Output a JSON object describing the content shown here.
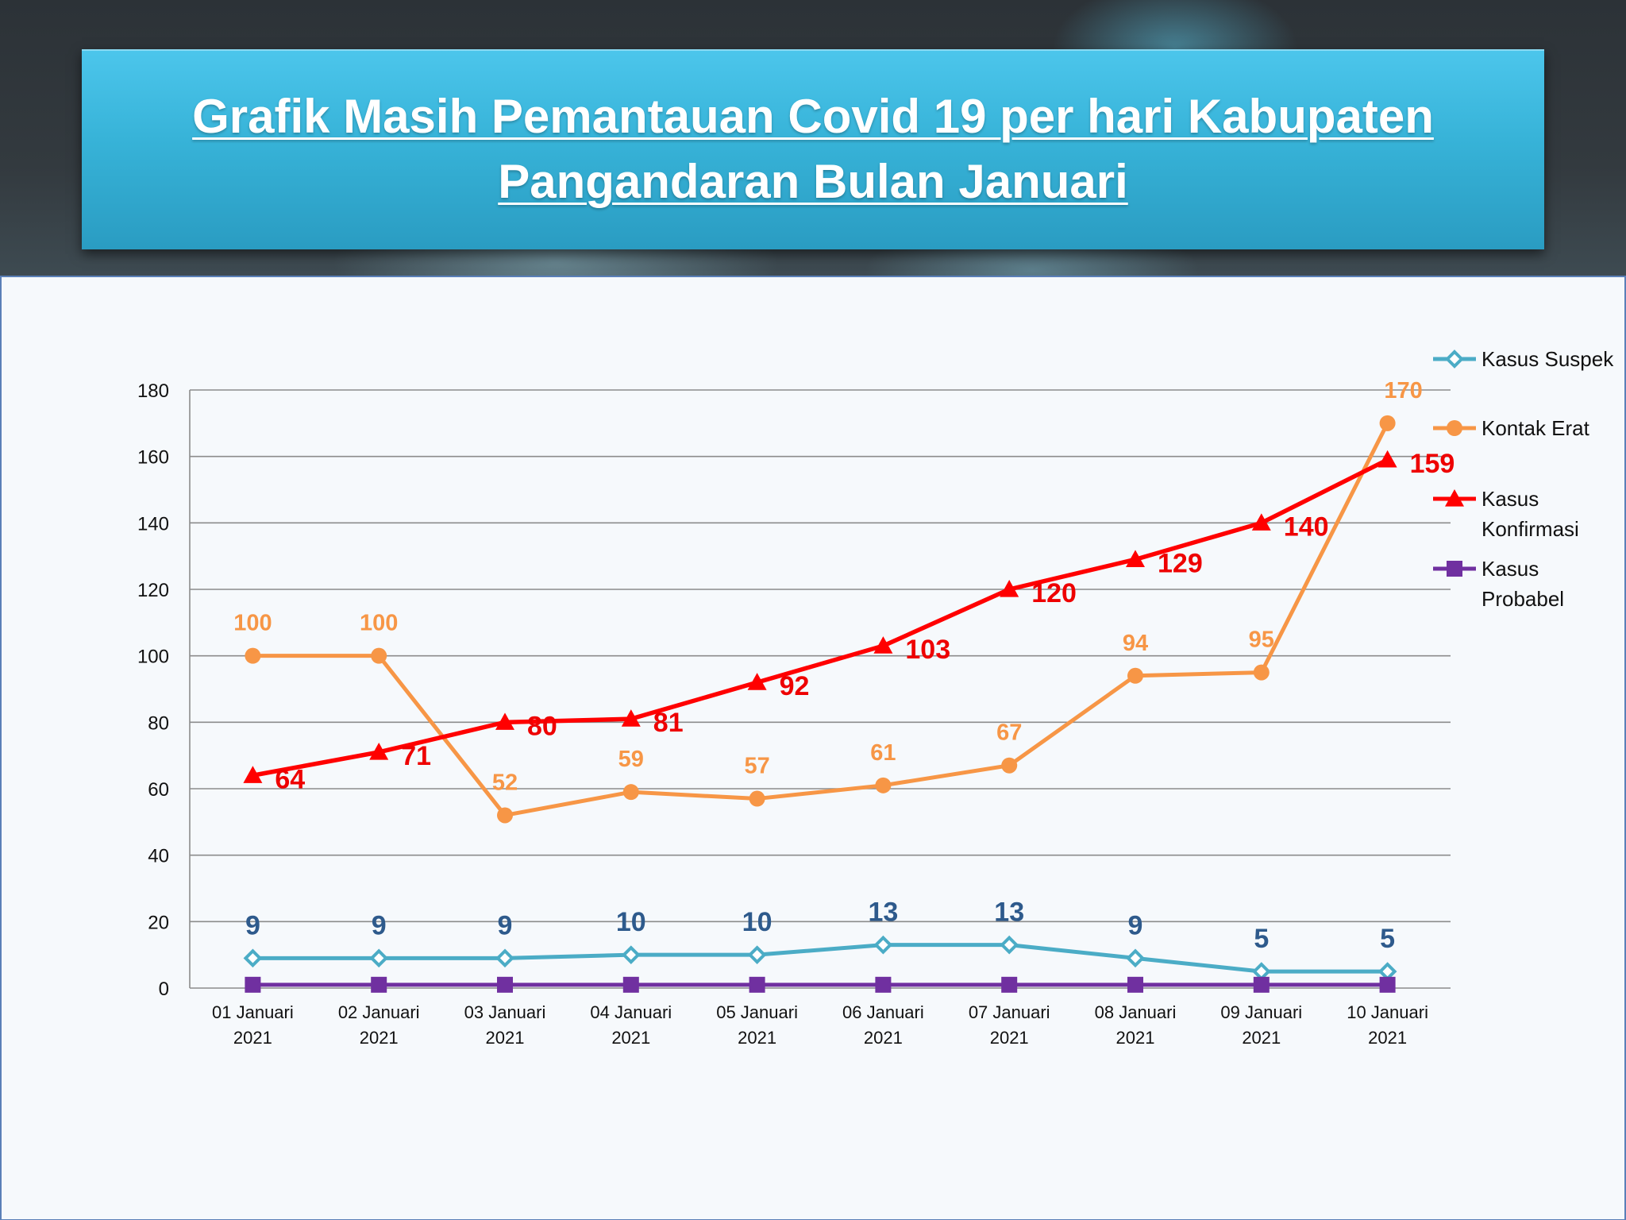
{
  "title": "Grafik Masih Pemantauan Covid 19 per hari Kabupaten Pangandaran Bulan Januari",
  "chart_data": {
    "type": "line",
    "title": "Grafik Masih Pemantauan Covid 19 per hari Kabupaten Pangandaran Bulan Januari",
    "xlabel": "",
    "ylabel": "",
    "ylim": [
      0,
      180
    ],
    "yticks": [
      0,
      20,
      40,
      60,
      80,
      100,
      120,
      140,
      160,
      180
    ],
    "grid": true,
    "legend_position": "right",
    "categories": [
      [
        "01 Januari",
        "2021"
      ],
      [
        "02 Januari",
        "2021"
      ],
      [
        "03 Januari",
        "2021"
      ],
      [
        "04 Januari",
        "2021"
      ],
      [
        "05 Januari",
        "2021"
      ],
      [
        "06 Januari",
        "2021"
      ],
      [
        "07 Januari",
        "2021"
      ],
      [
        "08 Januari",
        "2021"
      ],
      [
        "09 Januari",
        "2021"
      ],
      [
        "10 Januari",
        "2021"
      ]
    ],
    "series": [
      {
        "name": "Kasus Suspek",
        "legend_lines": [
          "Kasus Suspek"
        ],
        "values": [
          9,
          9,
          9,
          10,
          10,
          13,
          13,
          9,
          5,
          5
        ],
        "color": "#4bacc6",
        "label_color": "#2e5a8c",
        "marker": "diamond",
        "show_labels": true,
        "label_position": "above"
      },
      {
        "name": "Kontak Erat",
        "legend_lines": [
          "Kontak Erat"
        ],
        "values": [
          100,
          100,
          52,
          59,
          57,
          61,
          67,
          94,
          95,
          170
        ],
        "color": "#f79646",
        "label_color": "#f79646",
        "marker": "circle",
        "show_labels": true,
        "label_position": "above"
      },
      {
        "name": "Kasus Konfirmasi",
        "legend_lines": [
          "Kasus",
          "Konfirmasi"
        ],
        "values": [
          64,
          71,
          80,
          81,
          92,
          103,
          120,
          129,
          140,
          159
        ],
        "color": "#ff0000",
        "label_color": "#ee0000",
        "marker": "triangle",
        "show_labels": true,
        "label_position": "right"
      },
      {
        "name": "Kasus Probabel",
        "legend_lines": [
          "Kasus",
          "Probabel"
        ],
        "values": [
          1,
          1,
          1,
          1,
          1,
          1,
          1,
          1,
          1,
          1
        ],
        "color": "#7030a0",
        "label_color": "#7030a0",
        "marker": "square",
        "show_labels": false,
        "label_position": "none"
      }
    ]
  }
}
